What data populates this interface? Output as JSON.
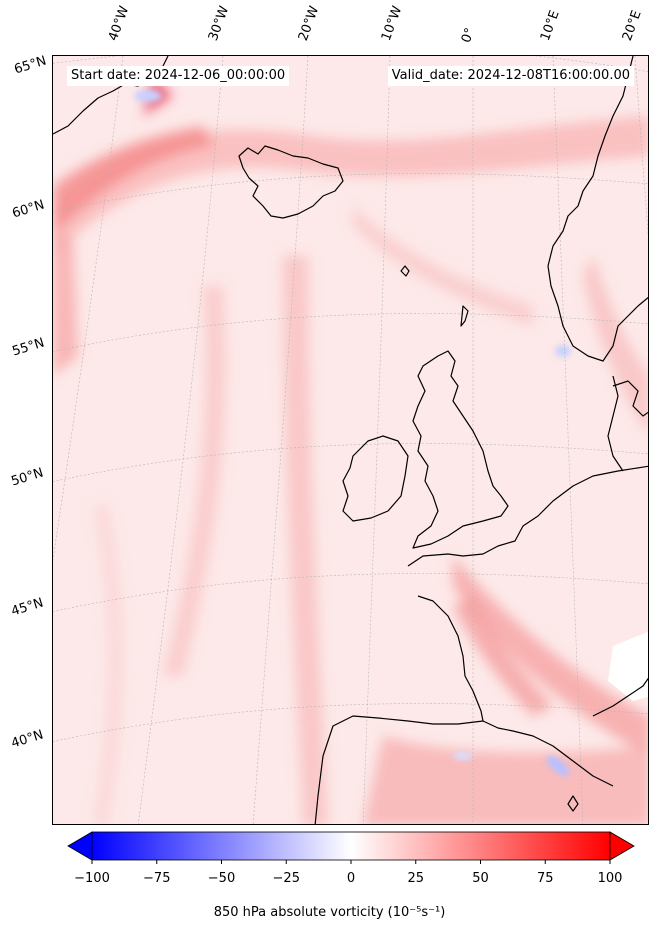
{
  "header": {
    "start_date": "Start date: 2024-12-06_00:00:00",
    "valid_date": "Valid_date: 2024-12-08T16:00:00.00"
  },
  "map": {
    "lon_labels": [
      "40°W",
      "30°W",
      "20°W",
      "10°W",
      "0°",
      "10°E",
      "20°E"
    ],
    "lat_labels": [
      "65°N",
      "60°N",
      "55°N",
      "50°N",
      "45°N",
      "40°N"
    ],
    "coastline_color": "#000000",
    "gridline_color": "#bbbbbb"
  },
  "colorbar": {
    "title": "850 hPa absolute vorticity (10⁻⁵s⁻¹)",
    "ticks": [
      "−100",
      "−75",
      "−50",
      "−25",
      "0",
      "25",
      "50",
      "75",
      "100"
    ],
    "min": -100,
    "max": 100,
    "low_color": "#0000ff",
    "mid_color": "#ffffff",
    "high_color": "#ff0000"
  }
}
